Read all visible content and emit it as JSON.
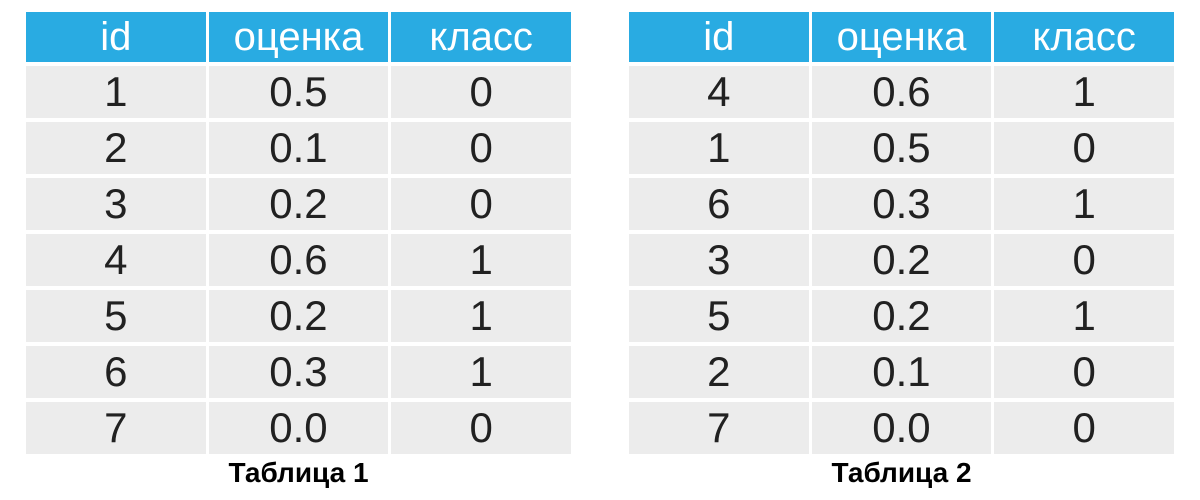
{
  "colors": {
    "header_bg": "#29ABE2",
    "header_text": "#ffffff",
    "row_bg": "#ECECEC",
    "cell_text": "#212121",
    "caption_text": "#000000",
    "background": "#ffffff"
  },
  "tables": [
    {
      "columns": [
        "id",
        "оценка",
        "класс"
      ],
      "rows": [
        [
          "1",
          "0.5",
          "0"
        ],
        [
          "2",
          "0.1",
          "0"
        ],
        [
          "3",
          "0.2",
          "0"
        ],
        [
          "4",
          "0.6",
          "1"
        ],
        [
          "5",
          "0.2",
          "1"
        ],
        [
          "6",
          "0.3",
          "1"
        ],
        [
          "7",
          "0.0",
          "0"
        ]
      ],
      "caption": "Таблица 1"
    },
    {
      "columns": [
        "id",
        "оценка",
        "класс"
      ],
      "rows": [
        [
          "4",
          "0.6",
          "1"
        ],
        [
          "1",
          "0.5",
          "0"
        ],
        [
          "6",
          "0.3",
          "1"
        ],
        [
          "3",
          "0.2",
          "0"
        ],
        [
          "5",
          "0.2",
          "1"
        ],
        [
          "2",
          "0.1",
          "0"
        ],
        [
          "7",
          "0.0",
          "0"
        ]
      ],
      "caption": "Таблица 2"
    }
  ]
}
